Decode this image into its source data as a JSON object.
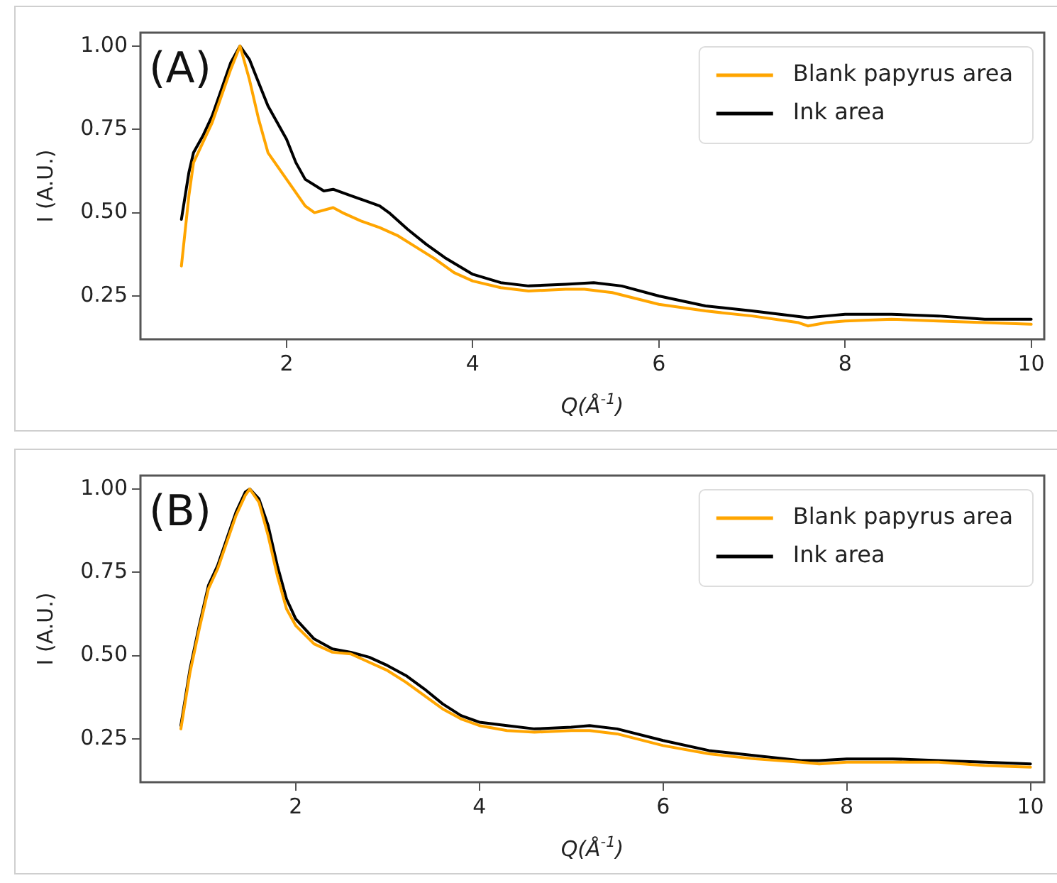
{
  "chart_data": [
    {
      "type": "line",
      "annotations": [
        "(A)"
      ],
      "xlabel": "Q(Å$^{-1}$)",
      "ylabel": "I (A.U.)",
      "legend": "top right",
      "grid": false,
      "marker": "none",
      "line_style": "solid",
      "xlim": [
        0.43,
        10.14
      ],
      "xticks": [
        2,
        4,
        6,
        8,
        10
      ],
      "ylim": [
        0.12,
        1.04
      ],
      "yticks": [
        0.25,
        {
          "value": 0.5,
          "label": "0.50"
        },
        {
          "value": 0.75,
          "label": "0.75"
        },
        {
          "value": 1,
          "label": "1.00"
        }
      ],
      "series": [
        {
          "name": "Blank papyrus area",
          "color": "#ffa500",
          "x": [
            0.87,
            0.95,
            1.0,
            1.1,
            1.2,
            1.3,
            1.4,
            1.5,
            1.6,
            1.7,
            1.8,
            2.0,
            2.2,
            2.3,
            2.5,
            2.6,
            2.8,
            3.0,
            3.2,
            3.4,
            3.6,
            3.8,
            4.0,
            4.3,
            4.6,
            5.0,
            5.2,
            5.5,
            6.0,
            6.5,
            7.0,
            7.5,
            7.6,
            7.8,
            8.0,
            8.5,
            9.0,
            9.5,
            10.0
          ],
          "values": [
            0.34,
            0.55,
            0.65,
            0.71,
            0.77,
            0.85,
            0.93,
            1.0,
            0.9,
            0.78,
            0.68,
            0.6,
            0.52,
            0.5,
            0.515,
            0.5,
            0.475,
            0.455,
            0.43,
            0.395,
            0.36,
            0.32,
            0.295,
            0.275,
            0.265,
            0.27,
            0.27,
            0.26,
            0.225,
            0.205,
            0.19,
            0.17,
            0.16,
            0.17,
            0.175,
            0.18,
            0.175,
            0.17,
            0.165
          ]
        },
        {
          "name": "Ink area",
          "color": "#000000",
          "x": [
            0.87,
            0.95,
            1.0,
            1.1,
            1.2,
            1.3,
            1.4,
            1.5,
            1.6,
            1.7,
            1.8,
            2.0,
            2.1,
            2.2,
            2.4,
            2.5,
            2.7,
            2.9,
            3.0,
            3.1,
            3.3,
            3.5,
            3.7,
            4.0,
            4.3,
            4.6,
            5.0,
            5.3,
            5.6,
            6.0,
            6.5,
            7.0,
            7.6,
            7.8,
            8.0,
            8.5,
            9.0,
            9.5,
            10.0
          ],
          "values": [
            0.48,
            0.62,
            0.68,
            0.73,
            0.79,
            0.87,
            0.95,
            1.0,
            0.96,
            0.89,
            0.82,
            0.72,
            0.65,
            0.6,
            0.565,
            0.57,
            0.55,
            0.53,
            0.52,
            0.5,
            0.45,
            0.405,
            0.365,
            0.315,
            0.29,
            0.28,
            0.285,
            0.29,
            0.28,
            0.25,
            0.22,
            0.205,
            0.185,
            0.19,
            0.195,
            0.195,
            0.19,
            0.18,
            0.18
          ]
        }
      ]
    },
    {
      "type": "line",
      "annotations": [
        "(B)"
      ],
      "xlabel": "Q(Å$^{-1}$)",
      "ylabel": "I (A.U.)",
      "legend": "top right",
      "grid": false,
      "marker": "none",
      "line_style": "solid",
      "xlim": [
        0.31,
        10.15
      ],
      "xticks": [
        2,
        4,
        6,
        8,
        10
      ],
      "ylim": [
        0.12,
        1.04
      ],
      "yticks": [
        0.25,
        {
          "value": 0.5,
          "label": "0.50"
        },
        {
          "value": 0.75,
          "label": "0.75"
        },
        {
          "value": 1,
          "label": "1.00"
        }
      ],
      "series": [
        {
          "name": "Blank papyrus area",
          "color": "#ffa500",
          "x": [
            0.75,
            0.85,
            0.95,
            1.05,
            1.15,
            1.25,
            1.35,
            1.45,
            1.5,
            1.6,
            1.7,
            1.8,
            1.9,
            2.0,
            2.2,
            2.4,
            2.6,
            2.8,
            3.0,
            3.2,
            3.4,
            3.6,
            3.8,
            4.0,
            4.3,
            4.6,
            5.0,
            5.2,
            5.5,
            6.0,
            6.5,
            7.0,
            7.5,
            7.7,
            8.0,
            8.5,
            9.0,
            9.5,
            10.0
          ],
          "values": [
            0.28,
            0.45,
            0.58,
            0.7,
            0.76,
            0.84,
            0.92,
            0.98,
            1.0,
            0.96,
            0.86,
            0.74,
            0.64,
            0.59,
            0.535,
            0.51,
            0.505,
            0.48,
            0.455,
            0.42,
            0.38,
            0.34,
            0.31,
            0.29,
            0.275,
            0.27,
            0.275,
            0.275,
            0.265,
            0.23,
            0.205,
            0.19,
            0.18,
            0.175,
            0.18,
            0.18,
            0.18,
            0.17,
            0.165
          ]
        },
        {
          "name": "Ink area",
          "color": "#000000",
          "x": [
            0.75,
            0.85,
            0.95,
            1.05,
            1.15,
            1.25,
            1.35,
            1.45,
            1.5,
            1.6,
            1.7,
            1.8,
            1.9,
            2.0,
            2.2,
            2.4,
            2.6,
            2.8,
            3.0,
            3.2,
            3.4,
            3.6,
            3.8,
            4.0,
            4.3,
            4.6,
            5.0,
            5.2,
            5.5,
            6.0,
            6.5,
            7.0,
            7.5,
            7.7,
            8.0,
            8.5,
            9.0,
            9.5,
            10.0
          ],
          "values": [
            0.29,
            0.46,
            0.59,
            0.71,
            0.77,
            0.85,
            0.93,
            0.99,
            1.0,
            0.97,
            0.89,
            0.77,
            0.67,
            0.61,
            0.55,
            0.52,
            0.51,
            0.495,
            0.47,
            0.44,
            0.4,
            0.355,
            0.32,
            0.3,
            0.29,
            0.28,
            0.285,
            0.29,
            0.28,
            0.245,
            0.215,
            0.2,
            0.185,
            0.185,
            0.19,
            0.19,
            0.185,
            0.18,
            0.175
          ]
        }
      ]
    }
  ]
}
